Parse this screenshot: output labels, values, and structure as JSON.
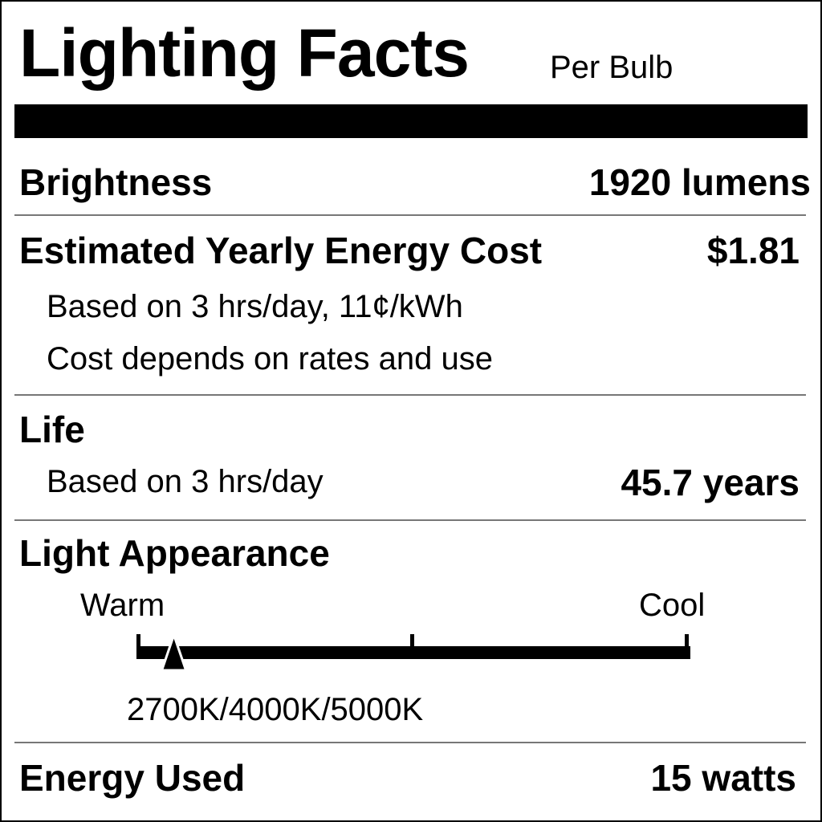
{
  "title": "Lighting Facts",
  "subtitle": "Per Bulb",
  "brightness": {
    "label": "Brightness",
    "value": "1920 lumens"
  },
  "cost": {
    "label": "Estimated Yearly Energy Cost",
    "value": "$1.81",
    "note1": "Based on 3 hrs/day, 11¢/kWh",
    "note2": "Cost depends on rates and use"
  },
  "life": {
    "label": "Life",
    "note": "Based on 3 hrs/day",
    "value": "45.7 years"
  },
  "appearance": {
    "label": "Light Appearance",
    "warm": "Warm",
    "cool": "Cool",
    "temperature": "2700K/4000K/5000K",
    "marker_fraction": 0.065
  },
  "energy": {
    "label": "Energy Used",
    "value": "15 watts"
  }
}
